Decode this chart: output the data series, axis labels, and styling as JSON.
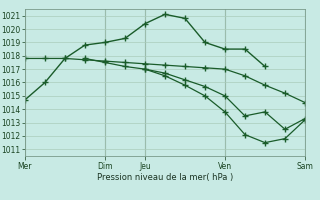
{
  "bg_color": "#c8eae4",
  "grid_color": "#aaccbb",
  "line_color": "#1a5c2a",
  "xlabel": "Pression niveau de la mer( hPa )",
  "ylim": [
    1010.5,
    1021.5
  ],
  "yticks": [
    1011,
    1012,
    1013,
    1014,
    1015,
    1016,
    1017,
    1018,
    1019,
    1020,
    1021
  ],
  "xtick_labels": [
    "Mer",
    "",
    "Dim",
    "Jeu",
    "",
    "Ven",
    "",
    "Sam"
  ],
  "xtick_positions": [
    0,
    2,
    4,
    6,
    8,
    10,
    12,
    14
  ],
  "vline_positions": [
    0,
    4,
    6,
    10,
    14
  ],
  "xlim": [
    0,
    14
  ],
  "line1_x": [
    0,
    1,
    2,
    3,
    4,
    5,
    6,
    7,
    8,
    9,
    10,
    11,
    12
  ],
  "line1_y": [
    1014.7,
    1016.0,
    1017.8,
    1018.8,
    1019.0,
    1019.3,
    1020.4,
    1021.1,
    1020.8,
    1019.0,
    1018.5,
    1018.5,
    1017.2
  ],
  "line2_x": [
    0,
    1,
    2,
    3,
    4,
    5,
    6,
    7,
    8,
    9,
    10,
    11,
    12,
    13,
    14
  ],
  "line2_y": [
    1017.8,
    1017.8,
    1017.8,
    1017.7,
    1017.6,
    1017.5,
    1017.4,
    1017.3,
    1017.2,
    1017.1,
    1017.0,
    1016.5,
    1015.8,
    1015.2,
    1014.5
  ],
  "line3_x": [
    3,
    4,
    5,
    6,
    7,
    8,
    9,
    10,
    11,
    12,
    13,
    14
  ],
  "line3_y": [
    1017.8,
    1017.5,
    1017.2,
    1017.0,
    1016.7,
    1016.2,
    1015.7,
    1015.0,
    1013.5,
    1013.8,
    1012.5,
    1013.3
  ],
  "line4_x": [
    6,
    7,
    8,
    9,
    10,
    11,
    12,
    13,
    14
  ],
  "line4_y": [
    1017.0,
    1016.5,
    1015.8,
    1015.0,
    1013.8,
    1012.1,
    1011.5,
    1011.8,
    1013.2
  ]
}
